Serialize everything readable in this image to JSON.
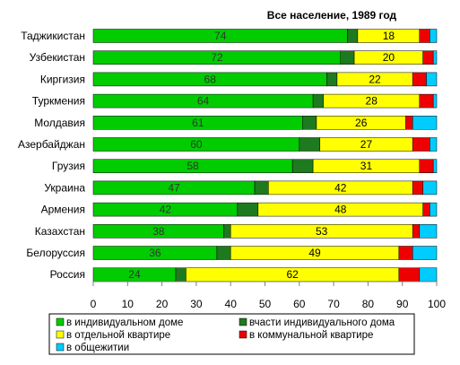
{
  "chart_data": {
    "type": "bar",
    "orientation": "horizontal",
    "stacked": true,
    "title": "Все население, 1989 год",
    "categories": [
      "Таджикистан",
      "Узбекистан",
      "Киргизия",
      "Туркмения",
      "Молдавия",
      "Азербайджан",
      "Грузия",
      "Украина",
      "Армения",
      "Казахстан",
      "Белоруссия",
      "Россия"
    ],
    "xlim": [
      0,
      100
    ],
    "xticks": [
      "0",
      "10",
      "20",
      "30",
      "40",
      "50",
      "60",
      "70",
      "80",
      "90",
      "100"
    ],
    "grid": false,
    "legend_position": "bottom",
    "series": [
      {
        "name": "в индивидуальном доме",
        "color": "#00cc00",
        "values": [
          74,
          72,
          68,
          64,
          61,
          60,
          58,
          47,
          42,
          38,
          36,
          24
        ],
        "labels": [
          "74",
          "72",
          "68",
          "64",
          "61",
          "60",
          "58",
          "47",
          "42",
          "38",
          "36",
          "24"
        ]
      },
      {
        "name": "вчасти индивидуального дома",
        "color": "#1e7a1e",
        "values": [
          3,
          4,
          3,
          3,
          4,
          6,
          6,
          4,
          6,
          2,
          4,
          3
        ],
        "labels": [
          "",
          "",
          "",
          "",
          "",
          "",
          "",
          "",
          "",
          "",
          "",
          ""
        ]
      },
      {
        "name": "в отдельной квартире",
        "color": "#ffff00",
        "values": [
          18,
          20,
          22,
          28,
          26,
          27,
          31,
          42,
          48,
          53,
          49,
          62
        ],
        "labels": [
          "18",
          "20",
          "22",
          "28",
          "26",
          "27",
          "31",
          "42",
          "48",
          "53",
          "49",
          "62"
        ]
      },
      {
        "name": "в коммунальной квартире",
        "color": "#ee0000",
        "values": [
          3,
          3,
          4,
          4,
          2,
          5,
          4,
          3,
          2,
          2,
          4,
          6
        ],
        "labels": [
          "",
          "",
          "",
          "",
          "",
          "",
          "",
          "",
          "",
          "",
          "",
          ""
        ]
      },
      {
        "name": "в общежитии",
        "color": "#00ccff",
        "values": [
          2,
          1,
          3,
          1,
          7,
          2,
          1,
          4,
          2,
          5,
          7,
          5
        ],
        "labels": [
          "",
          "",
          "",
          "",
          "",
          "",
          "",
          "",
          "",
          "",
          "",
          ""
        ]
      }
    ]
  }
}
